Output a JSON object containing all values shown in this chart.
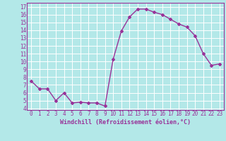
{
  "x": [
    0,
    1,
    2,
    3,
    4,
    5,
    6,
    7,
    8,
    9,
    10,
    11,
    12,
    13,
    14,
    15,
    16,
    17,
    18,
    19,
    20,
    21,
    22,
    23
  ],
  "y": [
    7.5,
    6.5,
    6.5,
    5.0,
    6.0,
    4.7,
    4.8,
    4.7,
    4.7,
    4.3,
    10.3,
    13.9,
    15.7,
    16.7,
    16.7,
    16.3,
    16.0,
    15.4,
    14.8,
    14.4,
    13.3,
    11.0,
    9.5,
    9.7
  ],
  "line_color": "#993399",
  "marker": "D",
  "marker_size": 2,
  "xlabel": "Windchill (Refroidissement éolien,°C)",
  "yticks": [
    4,
    5,
    6,
    7,
    8,
    9,
    10,
    11,
    12,
    13,
    14,
    15,
    16,
    17
  ],
  "xticks": [
    0,
    1,
    2,
    3,
    4,
    5,
    6,
    7,
    8,
    9,
    10,
    11,
    12,
    13,
    14,
    15,
    16,
    17,
    18,
    19,
    20,
    21,
    22,
    23
  ],
  "xlim": [
    -0.5,
    23.5
  ],
  "ylim": [
    3.8,
    17.5
  ],
  "bg_color": "#b3e8e8",
  "grid_color": "#ffffff",
  "line_width": 1.0,
  "tick_color": "#993399",
  "label_color": "#993399",
  "font_family": "monospace",
  "xlabel_fontsize": 6,
  "tick_fontsize": 5.5
}
